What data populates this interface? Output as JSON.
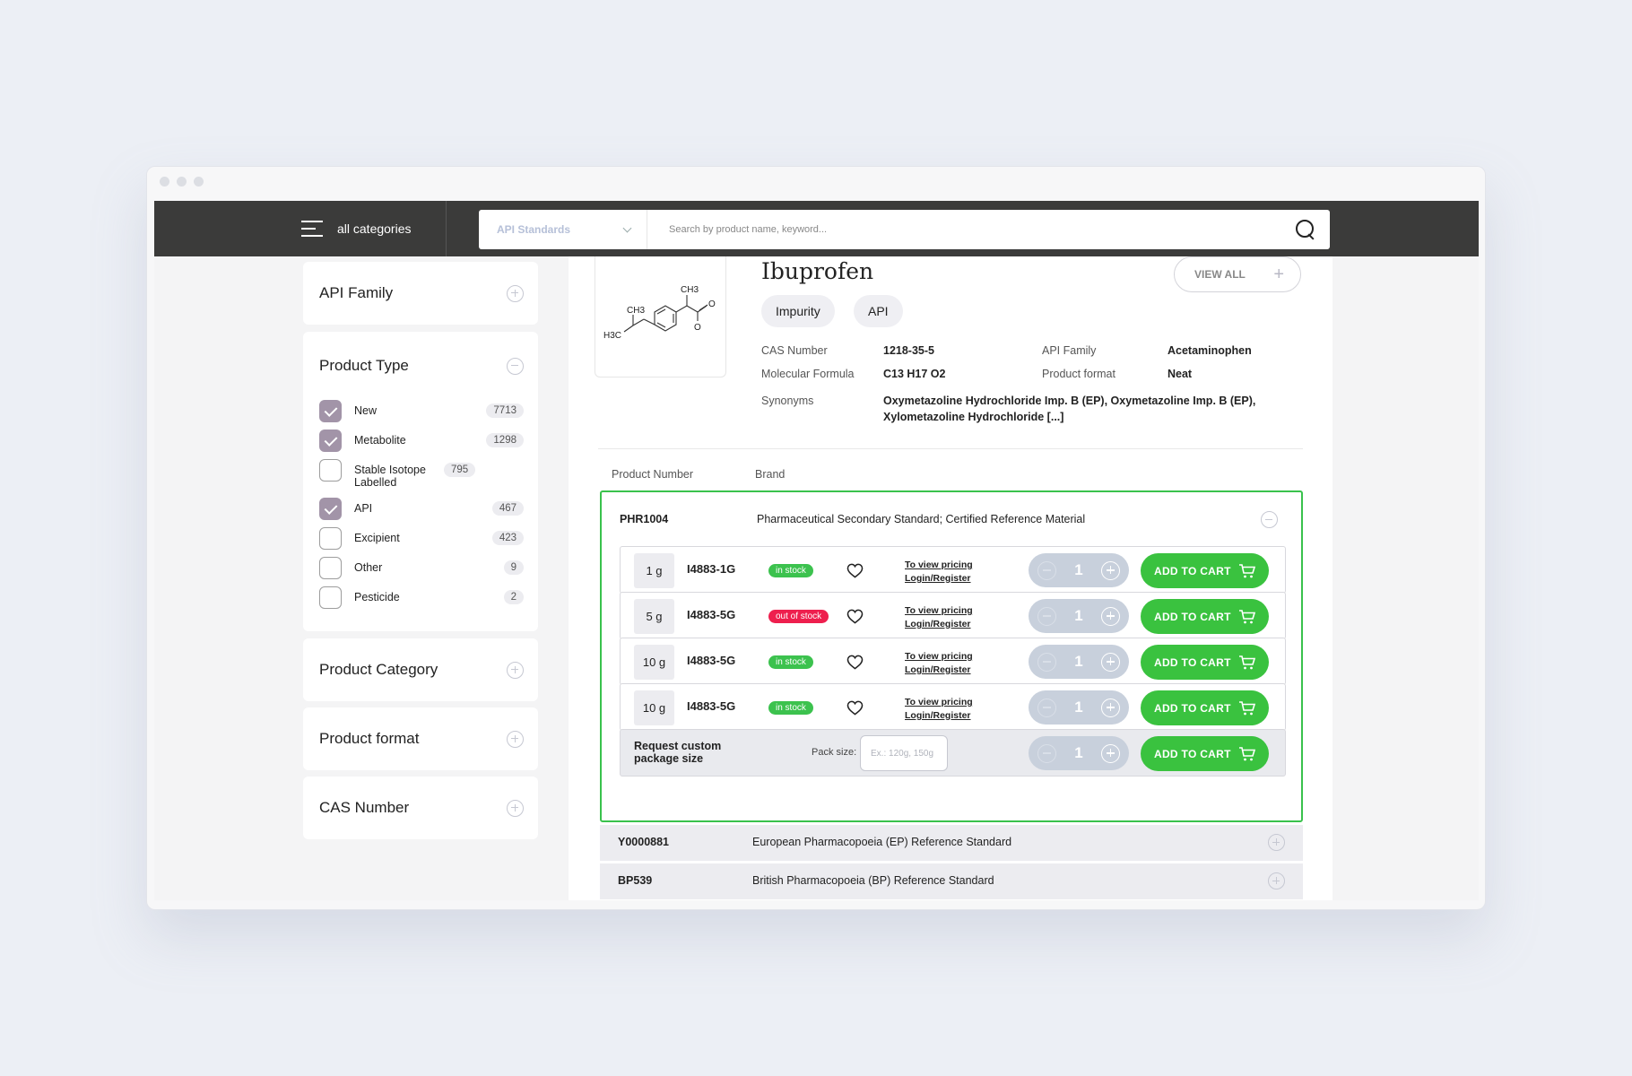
{
  "nav": {
    "categories_label": "all categories",
    "search_select": "API Standards",
    "search_placeholder": "Search by product name, keyword..."
  },
  "sidebar": {
    "api_family": "API Family",
    "product_type": {
      "title": "Product Type",
      "options": [
        {
          "label": "New",
          "count": "7713",
          "checked": true
        },
        {
          "label": "Metabolite",
          "count": "1298",
          "checked": true
        },
        {
          "label": "Stable Isotope Labelled",
          "count": "795",
          "checked": false
        },
        {
          "label": "API",
          "count": "467",
          "checked": true
        },
        {
          "label": "Excipient",
          "count": "423",
          "checked": false
        },
        {
          "label": "Other",
          "count": "9",
          "checked": false
        },
        {
          "label": "Pesticide",
          "count": "2",
          "checked": false
        }
      ]
    },
    "product_category": "Product Category",
    "product_format": "Product format",
    "cas_number": "CAS Number"
  },
  "product": {
    "name": "Ibuprofen",
    "tags": [
      "Impurity",
      "API"
    ],
    "view_all": "VIEW ALL",
    "structure_labels": {
      "ch3_top": "CH3",
      "ch3_left": "CH3",
      "h3c": "H3C",
      "o_top": "O",
      "o_bottom": "O"
    },
    "meta": {
      "cas_label": "CAS Number",
      "cas_value": "1218-35-5",
      "formula_label": "Molecular Formula",
      "formula_value": "C13 H17 O2",
      "family_label": "API Family",
      "family_value": "Acetaminophen",
      "format_label": "Product format",
      "format_value": "Neat",
      "synonyms_label": "Synonyms",
      "synonyms_line1": "Oxymetazoline Hydrochloride Imp. B (EP), Oxymetazoline Imp. B (EP),",
      "synonyms_line2": "Xylometazoline Hydrochloride [...]"
    }
  },
  "table": {
    "col_product_number": "Product Number",
    "col_brand": "Brand",
    "expanded": {
      "number": "PHR1004",
      "brand": "Pharmaceutical Secondary Standard; Certified Reference Material",
      "packs": [
        {
          "size": "1 g",
          "sku": "I4883-1G",
          "stock": "in stock",
          "in_stock": true,
          "qty": "1"
        },
        {
          "size": "5 g",
          "sku": "I4883-5G",
          "stock": "out of stock",
          "in_stock": false,
          "qty": "1"
        },
        {
          "size": "10 g",
          "sku": "I4883-5G",
          "stock": "in stock",
          "in_stock": true,
          "qty": "1"
        },
        {
          "size": "10 g",
          "sku": "I4883-5G",
          "stock": "in stock",
          "in_stock": true,
          "qty": "1"
        }
      ],
      "pricing_line1": "To view pricing",
      "pricing_line2": "Login/Register",
      "add_to_cart": "ADD TO CART",
      "custom": {
        "label_line1": "Request custom",
        "label_line2": "package size",
        "pack_size_label": "Pack size:",
        "pack_size_placeholder": "Ex.: 120g, 150g",
        "qty": "1"
      }
    },
    "collapsed": [
      {
        "number": "Y0000881",
        "brand": "European Pharmacopoeia (EP) Reference Standard"
      },
      {
        "number": "BP539",
        "brand": "British Pharmacopoeia (BP) Reference Standard"
      }
    ]
  },
  "colors": {
    "accent_green": "#3ac23f",
    "checkbox": "#a294a8",
    "out_of_stock": "#ee1f4e",
    "nav_bg": "#3b3b3a"
  }
}
